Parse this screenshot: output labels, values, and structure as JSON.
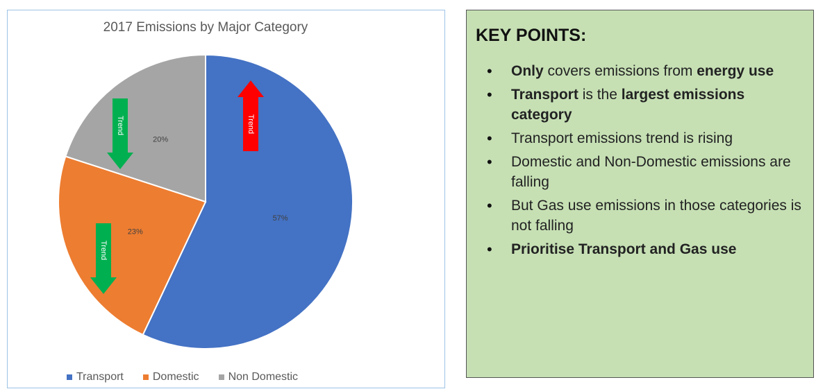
{
  "chart_data": {
    "type": "pie",
    "title": "2017 Emissions by Major Category",
    "categories": [
      "Transport",
      "Domestic",
      "Non Domestic"
    ],
    "values": [
      57,
      23,
      20
    ],
    "labels": [
      "57%",
      "23%",
      "20%"
    ],
    "colors": [
      "#4472c4",
      "#ed7d31",
      "#a5a5a5"
    ],
    "legend_position": "bottom",
    "annotations": [
      {
        "category": "Transport",
        "text": "Trend",
        "direction": "up",
        "color": "#ff0000"
      },
      {
        "category": "Domestic",
        "text": "Trend",
        "direction": "down",
        "color": "#00b050"
      },
      {
        "category": "Non Domestic",
        "text": "Trend",
        "direction": "down",
        "color": "#00b050"
      }
    ]
  },
  "key_points": {
    "title": "KEY POINTS:",
    "items": [
      [
        {
          "text": "Only",
          "bold": true
        },
        {
          "text": " covers emissions from ",
          "bold": false
        },
        {
          "text": "energy use",
          "bold": true
        }
      ],
      [
        {
          "text": "Transport",
          "bold": true
        },
        {
          "text": " is the ",
          "bold": false
        },
        {
          "text": "largest emissions category",
          "bold": true
        }
      ],
      [
        {
          "text": "Transport emissions trend is rising",
          "bold": false
        }
      ],
      [
        {
          "text": "Domestic and Non-Domestic emissions are falling",
          "bold": false
        }
      ],
      [
        {
          "text": "But Gas use emissions in those categories is not falling",
          "bold": false
        }
      ],
      [
        {
          "text": "Prioritise Transport and Gas use",
          "bold": true
        }
      ]
    ]
  }
}
